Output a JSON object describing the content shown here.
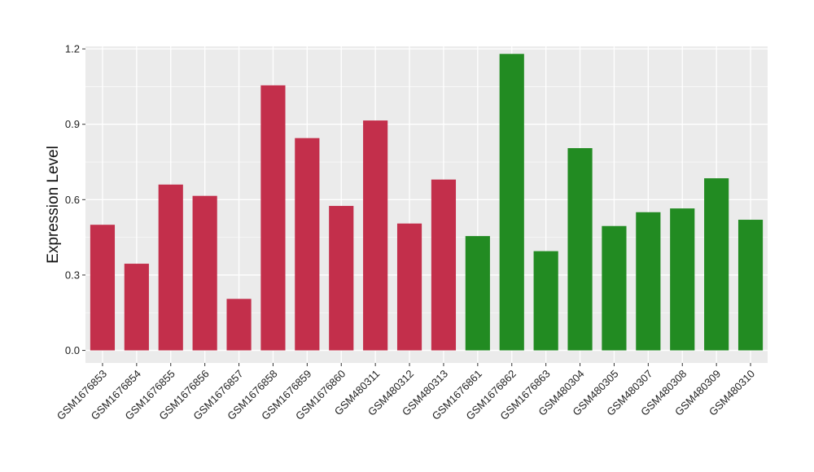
{
  "chart_data": {
    "type": "bar",
    "title": "",
    "xlabel": "",
    "ylabel": "Expression Level",
    "ylim": [
      -0.05,
      1.21
    ],
    "yticks": [
      0.0,
      0.3,
      0.6,
      0.9,
      1.2
    ],
    "ytick_labels": [
      "0.0",
      "0.3",
      "0.6",
      "0.9",
      "1.2"
    ],
    "grid": true,
    "legend": "none",
    "categories": [
      "GSM1676853",
      "GSM1676854",
      "GSM1676855",
      "GSM1676856",
      "GSM1676857",
      "GSM1676858",
      "GSM1676859",
      "GSM1676860",
      "GSM480311",
      "GSM480312",
      "GSM480313",
      "GSM1676861",
      "GSM1676862",
      "GSM1676863",
      "GSM480304",
      "GSM480305",
      "GSM480307",
      "GSM480308",
      "GSM480309",
      "GSM480310"
    ],
    "values": [
      0.5,
      0.345,
      0.66,
      0.615,
      0.205,
      1.055,
      0.845,
      0.575,
      0.915,
      0.505,
      0.68,
      0.455,
      1.18,
      0.395,
      0.805,
      0.495,
      0.55,
      0.565,
      0.685,
      0.52
    ],
    "groups": [
      "red",
      "red",
      "red",
      "red",
      "red",
      "red",
      "red",
      "red",
      "red",
      "red",
      "red",
      "green",
      "green",
      "green",
      "green",
      "green",
      "green",
      "green",
      "green",
      "green"
    ],
    "colors": {
      "red": "#c32f4b",
      "green": "#228b22",
      "panel": "#ebebeb",
      "grid": "#ffffff"
    }
  }
}
